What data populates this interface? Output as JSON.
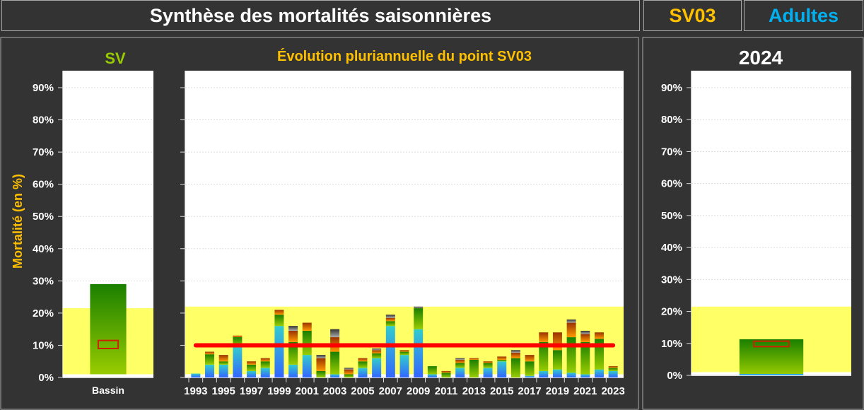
{
  "header": {
    "title": "Synthèse des mortalités saisonnières",
    "site": "SV03",
    "category": "Adultes"
  },
  "colors": {
    "title": "#ffffff",
    "site": "#ffc000",
    "category": "#00b0f0",
    "basin": "#99cc00",
    "axis_label": "#ffc000",
    "band": "#ffff66",
    "reference_line": "#ff0000",
    "segments": {
      "blue": [
        "#3366ff",
        "#33cccc"
      ],
      "green": [
        "#99cc00",
        "#1a7f00"
      ],
      "orange": [
        "#ff9900",
        "#993300"
      ],
      "gray": [
        "#aaaaaa",
        "#333333"
      ]
    }
  },
  "ylabel": "Mortalité (en %)",
  "chart_data": [
    {
      "type": "bar",
      "title": "SV",
      "categories": [
        "Bassin"
      ],
      "ylim": [
        0,
        95
      ],
      "yticks": [
        "0%",
        "10%",
        "20%",
        "30%",
        "40%",
        "50%",
        "60%",
        "70%",
        "80%",
        "90%"
      ],
      "band": [
        1,
        21.5
      ],
      "bar_range": [
        1,
        29
      ],
      "marker_box": [
        9,
        11.5
      ],
      "grid": true
    },
    {
      "type": "bar",
      "stacked": true,
      "title": "Évolution pluriannuelle du point SV03",
      "ylim": [
        0,
        95
      ],
      "band": [
        1,
        22
      ],
      "reference_line": 10,
      "categories": [
        "1993",
        "1994",
        "1995",
        "1996",
        "1997",
        "1998",
        "1999",
        "2000",
        "2001",
        "2002",
        "2003",
        "2004",
        "2005",
        "2006",
        "2007",
        "2008",
        "2009",
        "2010",
        "2011",
        "2012",
        "2013",
        "2014",
        "2015",
        "2016",
        "2017",
        "2018",
        "2019",
        "2020",
        "2021",
        "2022",
        "2023"
      ],
      "xtick_labels": [
        "1993",
        "1995",
        "1997",
        "1999",
        "2001",
        "2003",
        "2005",
        "2007",
        "2009",
        "2011",
        "2013",
        "2015",
        "2017",
        "2019",
        "2021",
        "2023"
      ],
      "series": [
        {
          "color": "blue",
          "values": [
            1.2,
            4,
            4,
            9.5,
            2,
            3,
            16,
            4,
            7,
            0,
            1,
            0,
            3,
            6,
            16,
            7,
            15,
            1,
            0,
            3,
            0,
            3,
            5,
            0,
            0.5,
            2,
            2.5,
            1.5,
            1,
            2.5,
            2
          ]
        },
        {
          "color": "green",
          "values": [
            0,
            3.2,
            1,
            3,
            2,
            2,
            3.5,
            7,
            7.5,
            2,
            7,
            1,
            2,
            1.5,
            1.5,
            1,
            6.5,
            2.5,
            1.5,
            1.5,
            5.5,
            1.5,
            0.5,
            6,
            4.5,
            9,
            6,
            11,
            10,
            9.5,
            1
          ]
        },
        {
          "color": "orange",
          "values": [
            0,
            0.8,
            2,
            0.5,
            1,
            1,
            1.5,
            3.5,
            2.5,
            4,
            4.5,
            1.5,
            1,
            1,
            1,
            0.5,
            0,
            0,
            0.5,
            1,
            0.5,
            0.5,
            1,
            1.7,
            2,
            3,
            5.5,
            4.5,
            2.5,
            2,
            0.5
          ]
        },
        {
          "color": "gray",
          "values": [
            0,
            0,
            0,
            0,
            0,
            0,
            0,
            1.5,
            0,
            1,
            2.5,
            0.5,
            0,
            0.5,
            1,
            0,
            0.5,
            0,
            0,
            0.5,
            0,
            0,
            0,
            0.8,
            0,
            0,
            0,
            1,
            1,
            0,
            0
          ]
        }
      ],
      "grid": true
    },
    {
      "type": "bar",
      "title": "2024",
      "ylim": [
        0,
        95
      ],
      "yticks": [
        "0%",
        "10%",
        "20%",
        "30%",
        "40%",
        "50%",
        "60%",
        "70%",
        "80%",
        "90%"
      ],
      "band": [
        1,
        21.5
      ],
      "bar_range": [
        0,
        11.3
      ],
      "marker_box": [
        9,
        10.7
      ],
      "grid": true
    }
  ]
}
